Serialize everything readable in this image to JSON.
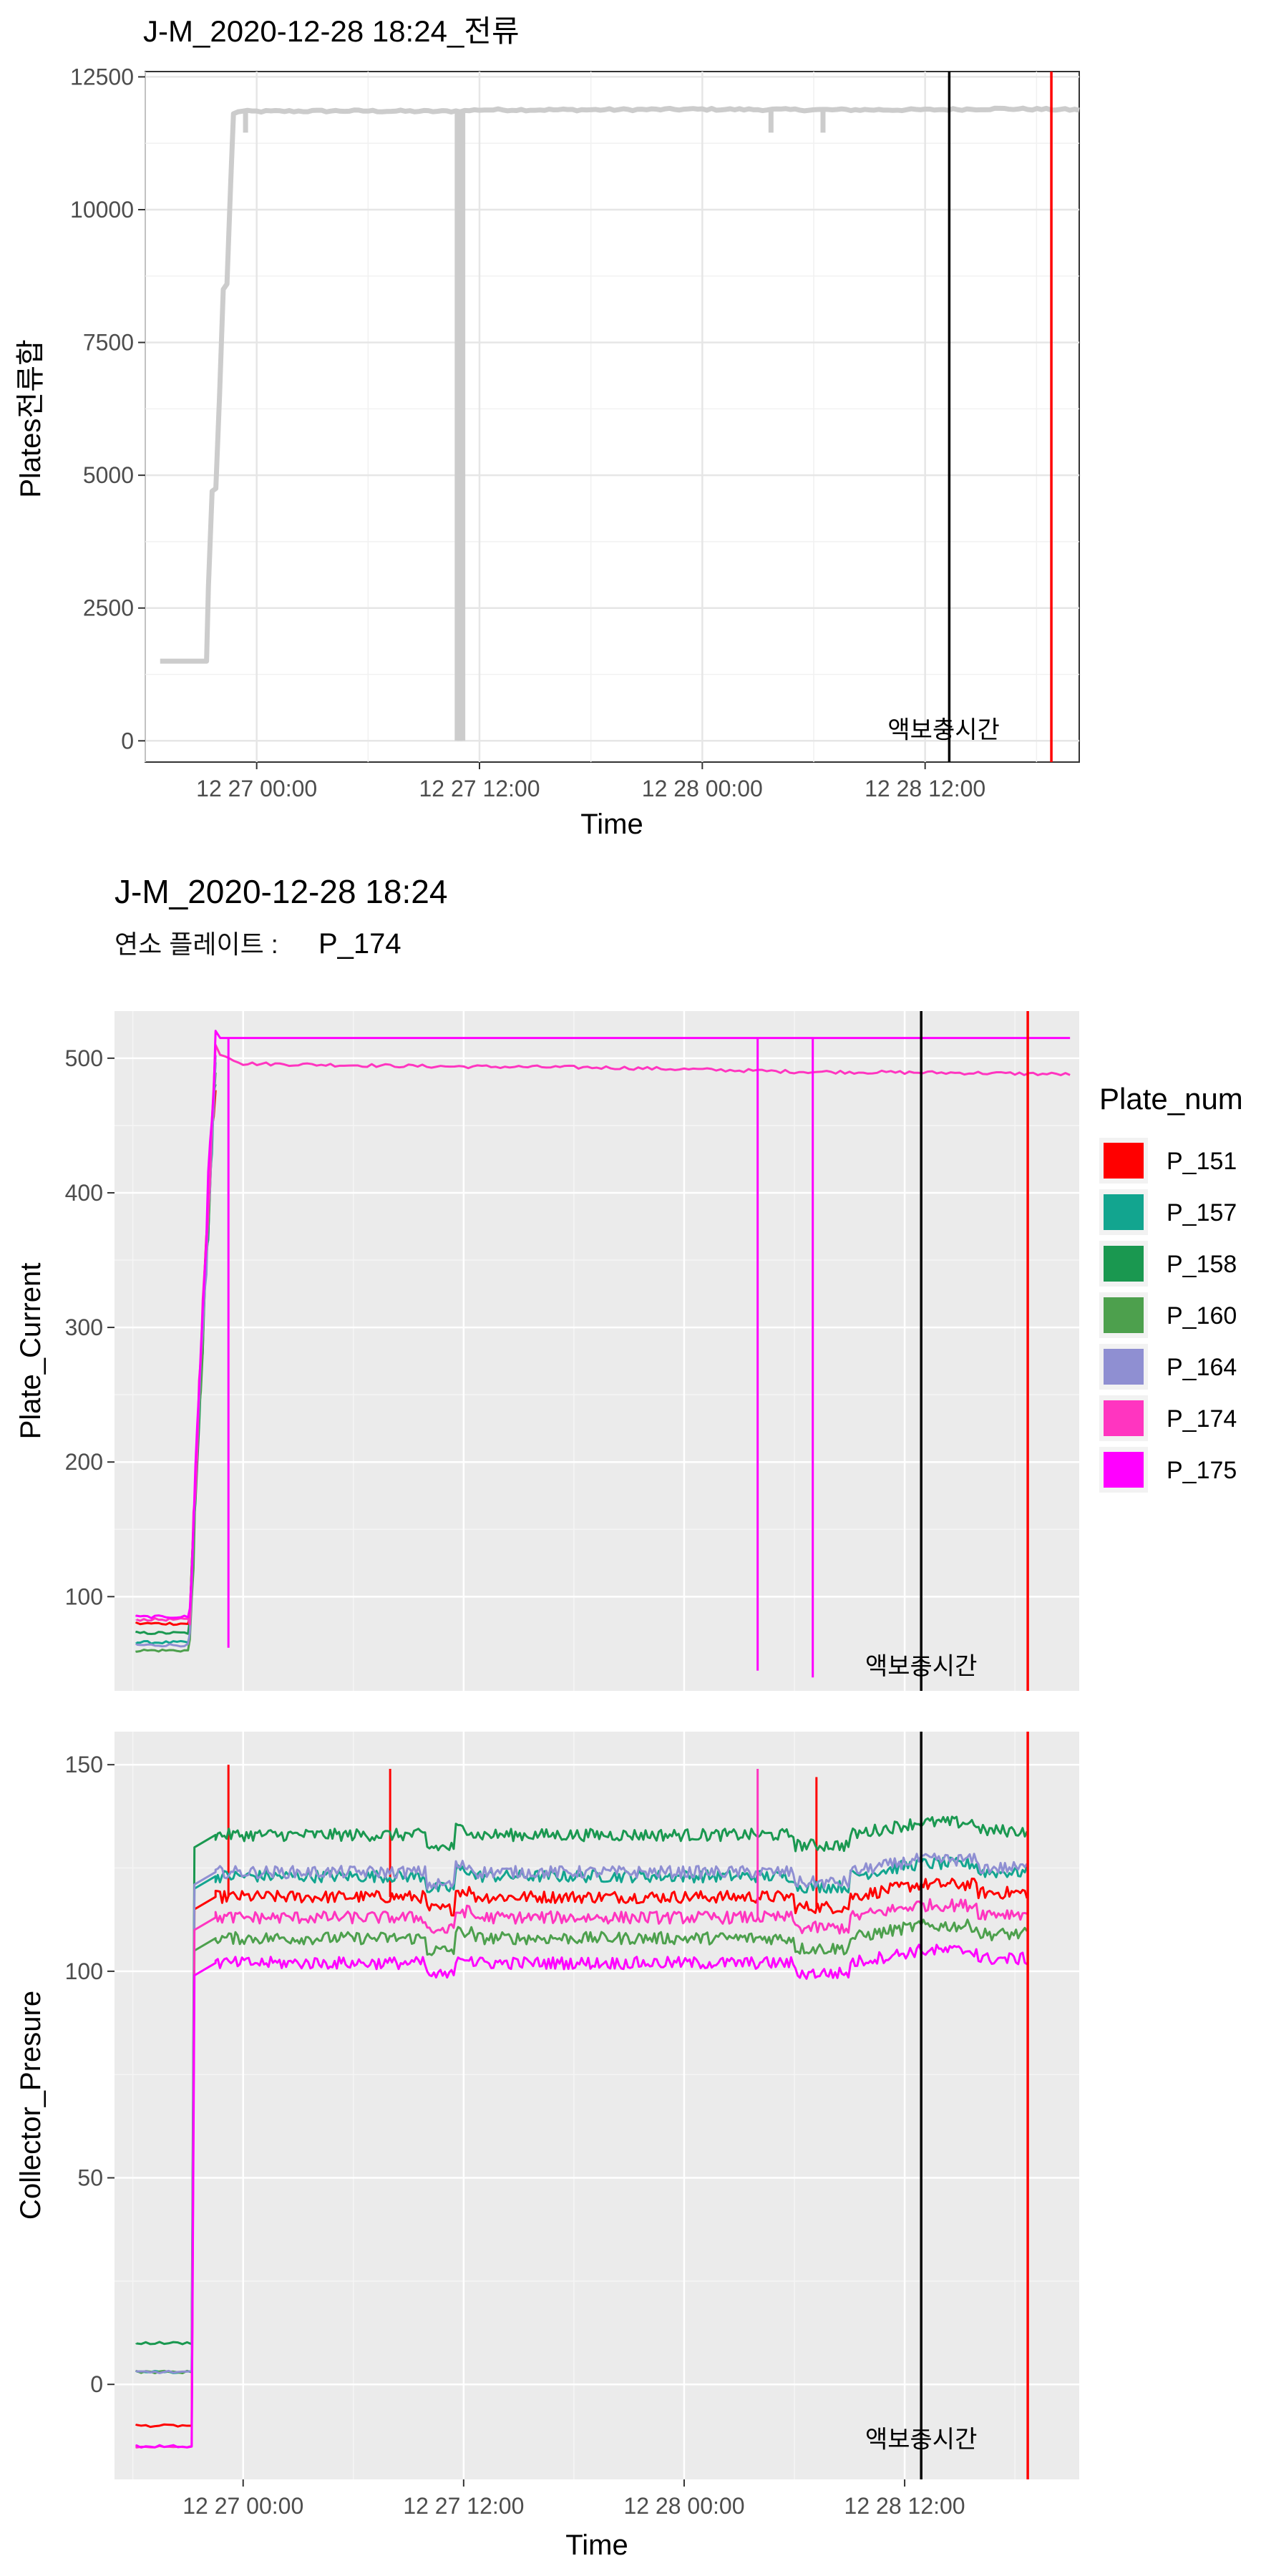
{
  "chart_data": [
    {
      "type": "line",
      "title": "J-M_2020-12-28 18:24_전류",
      "xlabel": "Time",
      "ylabel": "Plates전류합",
      "x_ticks": [
        "12 27 00:00",
        "12 27 12:00",
        "12 28 00:00",
        "12 28 12:00"
      ],
      "x_tick_hours": [
        0,
        12,
        24,
        36
      ],
      "xlim_hours": [
        -6.0,
        44.3
      ],
      "ylim": [
        -400,
        12600
      ],
      "y_ticks": [
        0,
        2500,
        5000,
        7500,
        10000,
        12500
      ],
      "grid": true,
      "series": [
        {
          "color": "#cccccc",
          "points": [
            [
              -5.2,
              1500
            ],
            [
              -2.7,
              1500
            ],
            [
              -2.6,
              2900
            ],
            [
              -2.4,
              4700
            ],
            [
              -2.2,
              4750
            ],
            [
              -2.0,
              6500
            ],
            [
              -1.8,
              8500
            ],
            [
              -1.6,
              8600
            ],
            [
              -1.4,
              10500
            ],
            [
              -1.25,
              11800
            ],
            [
              -1.0,
              11850
            ],
            [
              0,
              11850
            ],
            [
              5,
              11860
            ],
            [
              10,
              11850
            ],
            [
              11.2,
              11860
            ],
            [
              12,
              11880
            ],
            [
              18,
              11880
            ],
            [
              24,
              11890
            ],
            [
              30,
              11880
            ],
            [
              36,
              11880
            ],
            [
              40,
              11900
            ],
            [
              44.3,
              11880
            ]
          ],
          "drops": [
            [
              -0.6,
              11450
            ],
            [
              10.8,
              0
            ],
            [
              11.1,
              0
            ],
            [
              27.7,
              11450
            ],
            [
              30.5,
              11450
            ]
          ]
        }
      ],
      "vlines": [
        {
          "hour": 37.3,
          "color": "#000000"
        },
        {
          "hour": 42.8,
          "color": "#ff0000"
        }
      ],
      "annotation": {
        "text": "액보충시간",
        "hour": 37.0,
        "value": 0
      }
    },
    {
      "type": "line",
      "title": "J-M_2020-12-28 18:24",
      "subtitle_label": "연소 플레이트 :",
      "subtitle_value": "P_174",
      "xlabel": "",
      "ylabel": "Plate_Current",
      "x_tick_hours": [
        0,
        12,
        24,
        36
      ],
      "xlim_hours": [
        -7.0,
        45.5
      ],
      "ylim": [
        30,
        535
      ],
      "y_ticks": [
        100,
        200,
        300,
        400,
        500
      ],
      "grid": true,
      "legend_title": "Plate_num",
      "legend_position": "right",
      "legend": [
        {
          "name": "P_151",
          "color": "#ff0000"
        },
        {
          "name": "P_157",
          "color": "#12a58f"
        },
        {
          "name": "P_158",
          "color": "#1a9850"
        },
        {
          "name": "P_160",
          "color": "#4da04d"
        },
        {
          "name": "P_164",
          "color": "#8f8fd2"
        },
        {
          "name": "P_174",
          "color": "#ff35c0"
        },
        {
          "name": "P_175",
          "color": "#ff00ff"
        }
      ],
      "series": [
        {
          "name": "P_151",
          "color": "#ff0000",
          "start": 80
        },
        {
          "name": "P_157",
          "color": "#12a58f",
          "start": 66
        },
        {
          "name": "P_158",
          "color": "#1a9850",
          "start": 73
        },
        {
          "name": "P_160",
          "color": "#4da04d",
          "start": 60
        },
        {
          "name": "P_164",
          "color": "#8f8fd2",
          "start": 64
        },
        {
          "name": "P_174",
          "color": "#ff35c0",
          "start": 83,
          "plateau": [
            [
              -1.5,
              505
            ],
            [
              0,
              496
            ],
            [
              10,
              494
            ],
            [
              20,
              493
            ],
            [
              30,
              490
            ],
            [
              40,
              489
            ],
            [
              45,
              488
            ]
          ]
        },
        {
          "name": "P_175",
          "color": "#ff00ff",
          "start": 85,
          "plateau": [
            [
              -1.5,
              515
            ],
            [
              45,
              515
            ]
          ],
          "drops": [
            [
              -0.8,
              62
            ],
            [
              28.0,
              45
            ],
            [
              31.0,
              40
            ]
          ]
        }
      ],
      "step_hours": [
        -5.8,
        -2.9
      ],
      "rise_hours": [
        -2.9,
        -1.5
      ],
      "vlines": [
        {
          "hour": 36.9,
          "color": "#000000"
        },
        {
          "hour": 42.7,
          "color": "#ff0000"
        }
      ],
      "annotation": {
        "text": "액보충시간",
        "hour": 36.9,
        "value": 40
      }
    },
    {
      "type": "line",
      "title": "",
      "xlabel": "Time",
      "ylabel": "Collector_Presure",
      "x_ticks": [
        "12 27 00:00",
        "12 27 12:00",
        "12 28 00:00",
        "12 28 12:00"
      ],
      "x_tick_hours": [
        0,
        12,
        24,
        36
      ],
      "xlim_hours": [
        -7.0,
        45.5
      ],
      "ylim": [
        -23,
        158
      ],
      "y_ticks": [
        0,
        50,
        100,
        150
      ],
      "grid": true,
      "series": [
        {
          "name": "P_151",
          "color": "#ff0000",
          "start": -10,
          "level": 118,
          "drops": [
            [
              -0.8,
              150
            ],
            [
              8.0,
              149
            ],
            [
              31.2,
              147
            ]
          ]
        },
        {
          "name": "P_157",
          "color": "#12a58f",
          "start": 3,
          "level": 123
        },
        {
          "name": "P_158",
          "color": "#1a9850",
          "start": 10,
          "level": 133
        },
        {
          "name": "P_160",
          "color": "#4da04d",
          "start": 3,
          "level": 108
        },
        {
          "name": "P_164",
          "color": "#8f8fd2",
          "start": 3,
          "level": 124
        },
        {
          "name": "P_174",
          "color": "#ff35c0",
          "start": -15,
          "level": 113,
          "drops": [
            [
              28.0,
              149
            ]
          ]
        },
        {
          "name": "P_175",
          "color": "#ff00ff",
          "start": -15,
          "level": 102
        }
      ],
      "step_hours": [
        -5.8,
        -2.7
      ],
      "vlines": [
        {
          "hour": 36.9,
          "color": "#000000"
        },
        {
          "hour": 42.7,
          "color": "#ff0000"
        }
      ],
      "annotation": {
        "text": "액보충시간",
        "hour": 36.9,
        "value": -16
      }
    }
  ]
}
